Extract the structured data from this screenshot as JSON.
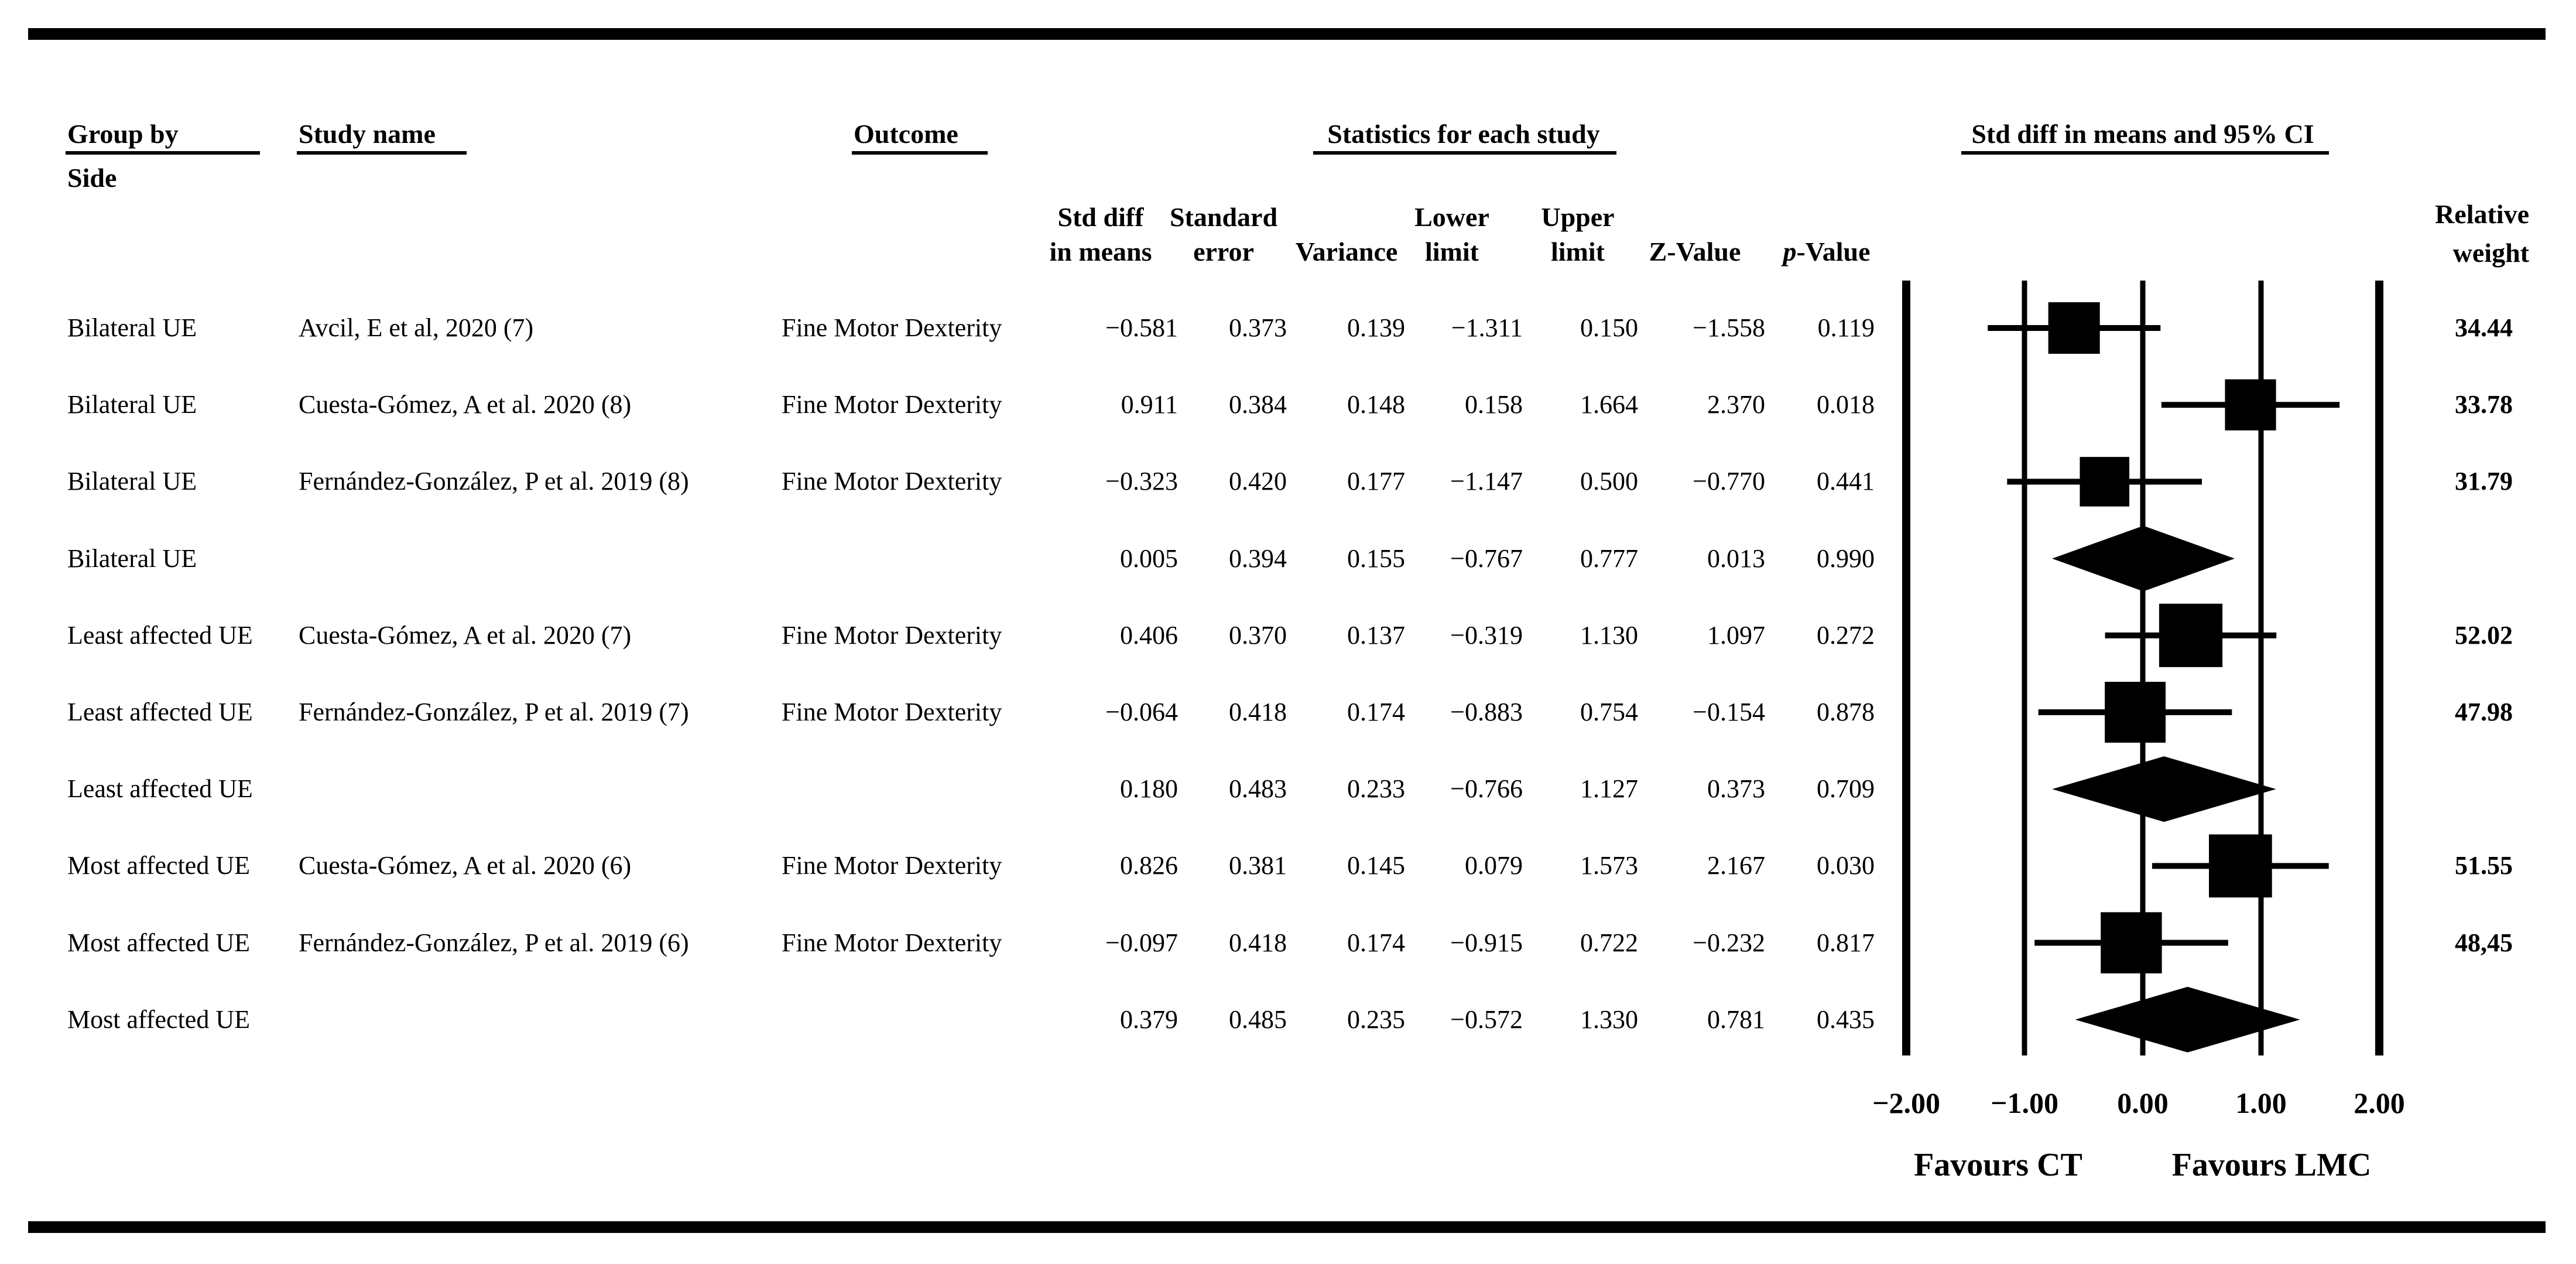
{
  "colors": {
    "ink": "#000000",
    "background": "#ffffff"
  },
  "header": {
    "group_by": "Group by",
    "group_by_sub": "Side",
    "study_name": "Study name",
    "outcome": "Outcome",
    "statistics": "Statistics for each study",
    "ci": "Std diff in means and 95% CI",
    "relative_line1": "Relative",
    "relative_line2": "weight"
  },
  "chart_data": {
    "type": "forest",
    "effect_measure": "Std diff in means",
    "xlim": [
      -2,
      2
    ],
    "x_ticks": [
      -2,
      -1,
      0,
      1,
      2
    ],
    "x_tick_labels": [
      "−2.00",
      "−1.00",
      "0.00",
      "1.00",
      "2.00"
    ],
    "favours_left": "Favours CT",
    "favours_right": "Favours LMC",
    "grid": true,
    "legend_position": "none",
    "stat_columns": [
      {
        "line1": "Std diff",
        "line2": "in means",
        "italic_first": false
      },
      {
        "line1": "Standard",
        "line2": "error",
        "italic_first": false
      },
      {
        "line1": "",
        "line2": "Variance",
        "italic_first": false
      },
      {
        "line1": "Lower",
        "line2": "limit",
        "italic_first": false
      },
      {
        "line1": "Upper",
        "line2": "limit",
        "italic_first": false
      },
      {
        "line1": "",
        "line2": "Z-Value",
        "italic_first": false
      },
      {
        "line1": "",
        "line2": "p-Value",
        "italic_first": true
      }
    ],
    "rows": [
      {
        "kind": "study",
        "group": "Bilateral UE",
        "study": "Avcil, E et al, 2020 (7)",
        "outcome": "Fine Motor Dexterity",
        "stats": [
          "−0.581",
          "0.373",
          "0.139",
          "−1.311",
          "0.150",
          "−1.558",
          "0.119"
        ],
        "mean": -0.581,
        "lower": -1.311,
        "upper": 0.15,
        "weight": 34.44,
        "weight_display": "34.44"
      },
      {
        "kind": "study",
        "group": "Bilateral UE",
        "study": "Cuesta-Gómez, A et al. 2020 (8)",
        "outcome": "Fine Motor Dexterity",
        "stats": [
          "0.911",
          "0.384",
          "0.148",
          "0.158",
          "1.664",
          "2.370",
          "0.018"
        ],
        "mean": 0.911,
        "lower": 0.158,
        "upper": 1.664,
        "weight": 33.78,
        "weight_display": "33.78"
      },
      {
        "kind": "study",
        "group": "Bilateral UE",
        "study": "Fernández-González, P et al. 2019 (8)",
        "outcome": "Fine Motor Dexterity",
        "stats": [
          "−0.323",
          "0.420",
          "0.177",
          "−1.147",
          "0.500",
          "−0.770",
          "0.441"
        ],
        "mean": -0.323,
        "lower": -1.147,
        "upper": 0.5,
        "weight": 31.79,
        "weight_display": "31.79"
      },
      {
        "kind": "summary",
        "group": "Bilateral UE",
        "study": "",
        "outcome": "",
        "stats": [
          "0.005",
          "0.394",
          "0.155",
          "−0.767",
          "0.777",
          "0.013",
          "0.990"
        ],
        "mean": 0.005,
        "lower": -0.767,
        "upper": 0.777,
        "weight": null,
        "weight_display": ""
      },
      {
        "kind": "study",
        "group": "Least affected UE",
        "study": "Cuesta-Gómez, A et al. 2020 (7)",
        "outcome": "Fine Motor Dexterity",
        "stats": [
          "0.406",
          "0.370",
          "0.137",
          "−0.319",
          "1.130",
          "1.097",
          "0.272"
        ],
        "mean": 0.406,
        "lower": -0.319,
        "upper": 1.13,
        "weight": 52.02,
        "weight_display": "52.02"
      },
      {
        "kind": "study",
        "group": "Least affected UE",
        "study": "Fernández-González, P et al. 2019 (7)",
        "outcome": "Fine Motor Dexterity",
        "stats": [
          "−0.064",
          "0.418",
          "0.174",
          "−0.883",
          "0.754",
          "−0.154",
          "0.878"
        ],
        "mean": -0.064,
        "lower": -0.883,
        "upper": 0.754,
        "weight": 47.98,
        "weight_display": "47.98"
      },
      {
        "kind": "summary",
        "group": "Least affected UE",
        "study": "",
        "outcome": "",
        "stats": [
          "0.180",
          "0.483",
          "0.233",
          "−0.766",
          "1.127",
          "0.373",
          "0.709"
        ],
        "mean": 0.18,
        "lower": -0.766,
        "upper": 1.127,
        "weight": null,
        "weight_display": ""
      },
      {
        "kind": "study",
        "group": "Most affected UE",
        "study": "Cuesta-Gómez, A et al. 2020 (6)",
        "outcome": "Fine Motor Dexterity",
        "stats": [
          "0.826",
          "0.381",
          "0.145",
          "0.079",
          "1.573",
          "2.167",
          "0.030"
        ],
        "mean": 0.826,
        "lower": 0.079,
        "upper": 1.573,
        "weight": 51.55,
        "weight_display": "51.55"
      },
      {
        "kind": "study",
        "group": "Most affected UE",
        "study": "Fernández-González, P et al. 2019 (6)",
        "outcome": "Fine Motor Dexterity",
        "stats": [
          "−0.097",
          "0.418",
          "0.174",
          "−0.915",
          "0.722",
          "−0.232",
          "0.817"
        ],
        "mean": -0.097,
        "lower": -0.915,
        "upper": 0.722,
        "weight": 48.45,
        "weight_display": "48,45"
      },
      {
        "kind": "summary",
        "group": "Most affected UE",
        "study": "",
        "outcome": "",
        "stats": [
          "0.379",
          "0.485",
          "0.235",
          "−0.572",
          "1.330",
          "0.781",
          "0.435"
        ],
        "mean": 0.379,
        "lower": -0.572,
        "upper": 1.33,
        "weight": null,
        "weight_display": ""
      }
    ]
  }
}
